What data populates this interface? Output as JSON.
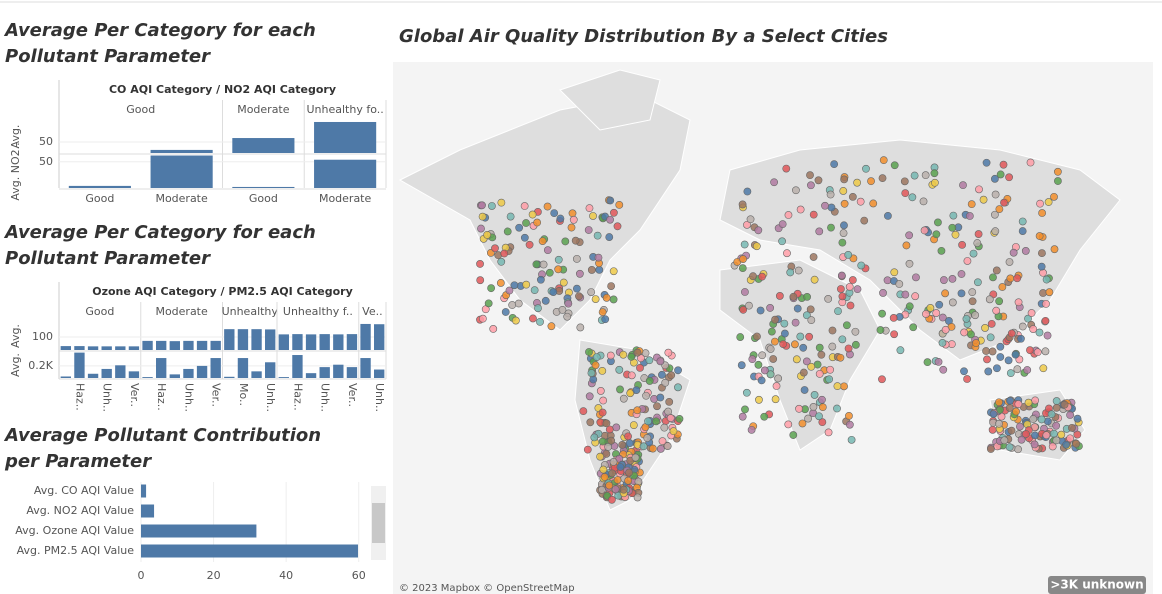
{
  "chart_data": [
    {
      "type": "facet-bar",
      "title": "Average Per Category for each Pollutant Parameter",
      "header": "CO AQI Category  /  NO2 AQI Category",
      "color": "#4e79a7",
      "columns": [
        {
          "name": "Good",
          "categories": [
            "Good",
            "Moderate"
          ]
        },
        {
          "name": "Moderate",
          "categories": [
            "Good"
          ]
        },
        {
          "name": "Unhealthy fo..",
          "categories": [
            "Moderate"
          ]
        }
      ],
      "rows": [
        {
          "label": "Avg.",
          "ylim": [
            0,
            150
          ],
          "yticks": [
            50
          ],
          "values": [
            [
              0,
              14
            ],
            [
              68
            ],
            [
              141
            ]
          ]
        },
        {
          "label": "Avg. NO2..",
          "ylim": [
            0,
            63
          ],
          "yticks": [
            50
          ],
          "values": [
            [
              4,
              62
            ],
            [
              2
            ],
            [
              54
            ]
          ]
        }
      ]
    },
    {
      "type": "facet-bar",
      "title": "Average Per Category for each Pollutant Parameter",
      "header": "Ozone AQI Category  /  PM2.5 AQI Category",
      "color": "#4e79a7",
      "columns": [
        {
          "name": "Good",
          "categories": [
            null,
            "Haz..",
            null,
            "Unh..",
            null,
            "Ver.."
          ]
        },
        {
          "name": "Moderate",
          "categories": [
            null,
            "Haz..",
            null,
            "Unh..",
            null,
            "Ver.."
          ]
        },
        {
          "name": "Unhealthy",
          "categories": [
            null,
            "Mo..",
            null,
            "Unh.."
          ]
        },
        {
          "name": "Unhealthy f..",
          "categories": [
            null,
            "Haz..",
            null,
            "Unh..",
            null,
            "Ver.."
          ]
        },
        {
          "name": "Ve..",
          "categories": [
            null,
            "Unh.."
          ]
        }
      ],
      "rows": [
        {
          "label": "Avg.",
          "ylim": [
            0,
            215
          ],
          "yticks": [
            100
          ],
          "values": [
            [
              30,
              30,
              28,
              28,
              28,
              28
            ],
            [
              70,
              70,
              68,
              70,
              70,
              70
            ],
            [
              160,
              160,
              160,
              158
            ],
            [
              120,
              122,
              120,
              122,
              120,
              122
            ],
            [
              200,
              198
            ]
          ]
        },
        {
          "label": "Avg.",
          "ylim": [
            0,
            430
          ],
          "yticks": [
            {
              "value": 200,
              "label": "0.2K"
            }
          ],
          "values": [
            [
              25,
              420,
              70,
              150,
              210,
              110
            ],
            [
              15,
              330,
              60,
              150,
              200,
              330
            ],
            [
              20,
              330,
              110,
              260
            ],
            [
              15,
              380,
              80,
              180,
              220,
              180
            ],
            [
              330,
              140
            ]
          ]
        }
      ]
    },
    {
      "type": "hbar",
      "title": "Average Pollutant Contribution per Parameter",
      "color": "#4e79a7",
      "categories": [
        "Avg. CO AQI Value",
        "Avg. NO2 AQI Value",
        "Avg. Ozone AQI Value",
        "Avg. PM2.5 AQI Value"
      ],
      "values": [
        1.4,
        3.6,
        31.8,
        59.8
      ],
      "xlim": [
        0,
        62
      ],
      "xticks": [
        0,
        20,
        40,
        60
      ]
    }
  ],
  "map": {
    "title": "Global Air Quality Distribution By a Select Cities",
    "attribution": "© 2023 Mapbox © OpenStreetMap",
    "badge": ">3K unknown"
  }
}
